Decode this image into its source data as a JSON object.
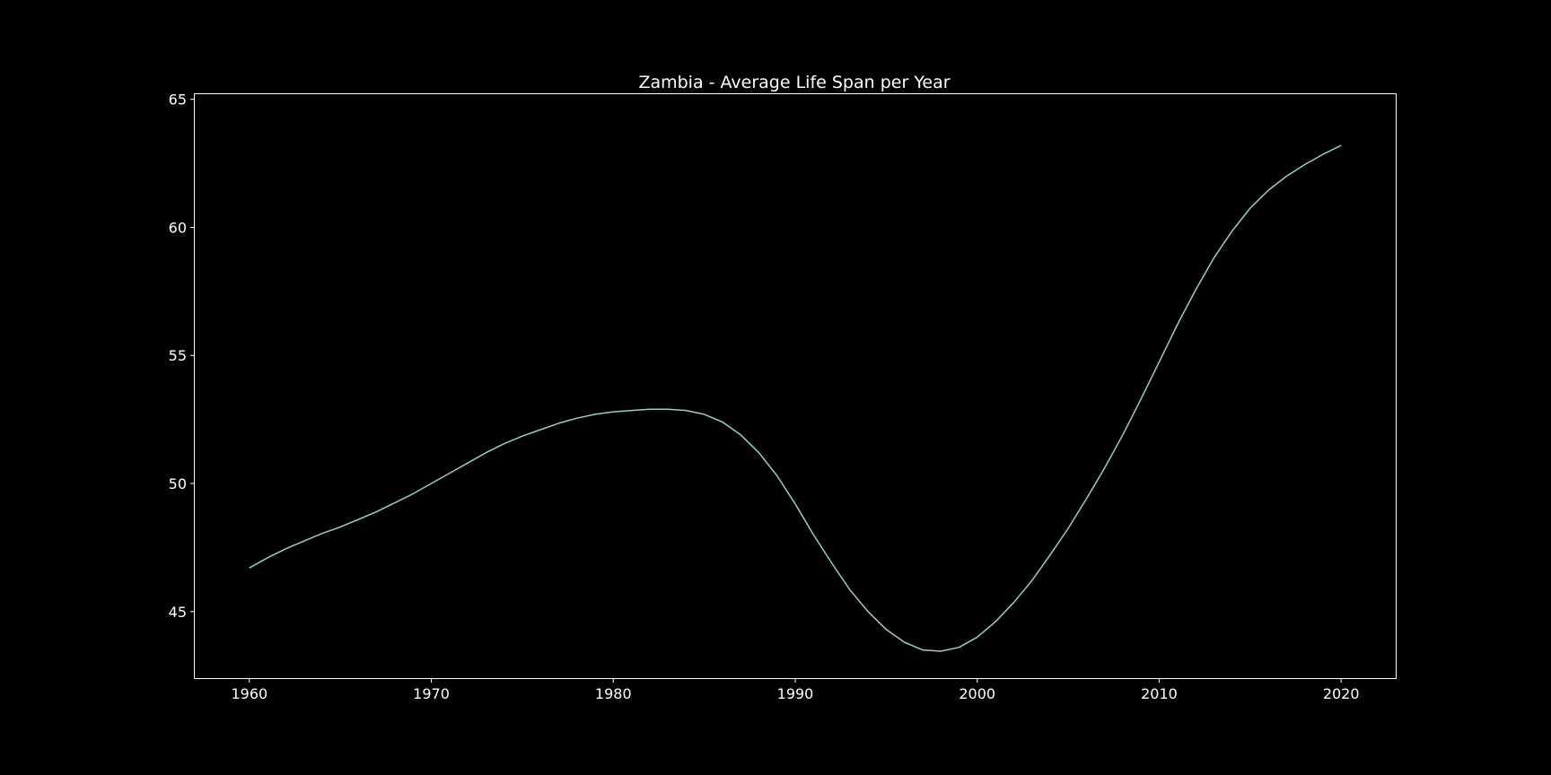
{
  "chart_data": {
    "type": "line",
    "title": "Zambia - Average Life Span per Year",
    "xlabel": "",
    "ylabel": "",
    "xlim": [
      1957,
      2023
    ],
    "ylim": [
      42.4,
      65.2
    ],
    "xticks": [
      1960,
      1970,
      1980,
      1990,
      2000,
      2010,
      2020
    ],
    "yticks": [
      45,
      50,
      55,
      60,
      65
    ],
    "grid": false,
    "legend": "none",
    "background": "#000000",
    "foreground": "#ffffff",
    "series": [
      {
        "color": "#8dd3c7",
        "x": [
          1960,
          1961,
          1962,
          1963,
          1964,
          1965,
          1966,
          1967,
          1968,
          1969,
          1970,
          1971,
          1972,
          1973,
          1974,
          1975,
          1976,
          1977,
          1978,
          1979,
          1980,
          1981,
          1982,
          1983,
          1984,
          1985,
          1986,
          1987,
          1988,
          1989,
          1990,
          1991,
          1992,
          1993,
          1994,
          1995,
          1996,
          1997,
          1998,
          1999,
          2000,
          2001,
          2002,
          2003,
          2004,
          2005,
          2006,
          2007,
          2008,
          2009,
          2010,
          2011,
          2012,
          2013,
          2014,
          2015,
          2016,
          2017,
          2018,
          2019,
          2020
        ],
        "y": [
          46.7,
          47.1,
          47.45,
          47.75,
          48.05,
          48.3,
          48.6,
          48.9,
          49.25,
          49.6,
          50.0,
          50.4,
          50.8,
          51.2,
          51.55,
          51.85,
          52.1,
          52.35,
          52.55,
          52.7,
          52.8,
          52.85,
          52.9,
          52.9,
          52.85,
          52.7,
          52.4,
          51.9,
          51.2,
          50.3,
          49.2,
          48.0,
          46.9,
          45.85,
          45.0,
          44.3,
          43.8,
          43.5,
          43.45,
          43.6,
          44.0,
          44.6,
          45.35,
          46.2,
          47.2,
          48.25,
          49.4,
          50.6,
          51.9,
          53.3,
          54.75,
          56.2,
          57.55,
          58.8,
          59.85,
          60.75,
          61.45,
          62.0,
          62.45,
          62.85,
          63.2
        ]
      }
    ]
  }
}
